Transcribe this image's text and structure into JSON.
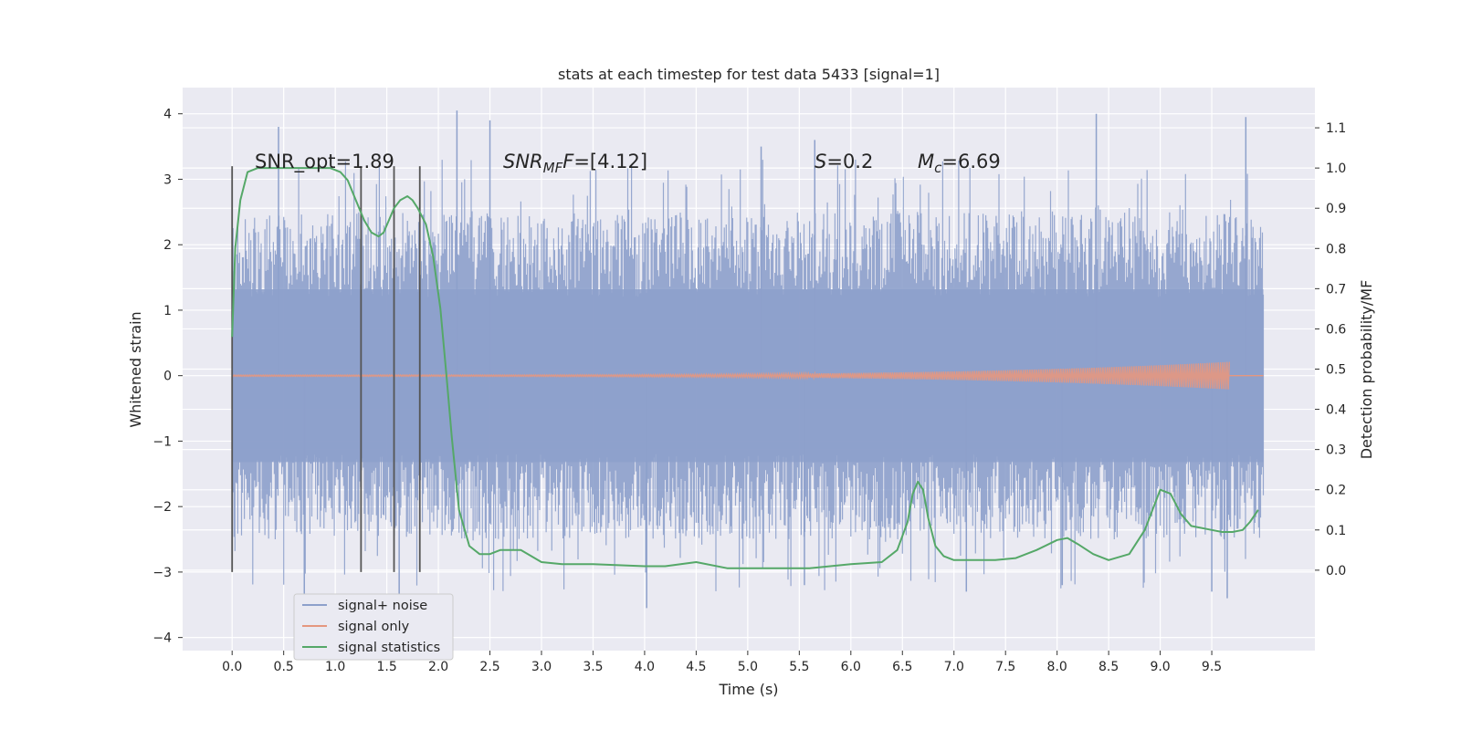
{
  "chart_data": {
    "type": "line",
    "title": "stats at each timestep for test data 5433 [signal=1]",
    "xlabel": "Time (s)",
    "ylabel_left": "Whitened strain",
    "ylabel_right": "Detection probability/MF",
    "xlim": [
      -0.48,
      10.5
    ],
    "ylim_left": [
      -4.2,
      4.4
    ],
    "ylim_right": [
      -0.2,
      1.2
    ],
    "x_ticks": [
      "0.0",
      "0.5",
      "1.0",
      "1.5",
      "2.0",
      "2.5",
      "3.0",
      "3.5",
      "4.0",
      "4.5",
      "5.0",
      "5.5",
      "6.0",
      "6.5",
      "7.0",
      "7.5",
      "8.0",
      "8.5",
      "9.0",
      "9.5"
    ],
    "x_tick_values": [
      0,
      0.5,
      1,
      1.5,
      2,
      2.5,
      3,
      3.5,
      4,
      4.5,
      5,
      5.5,
      6,
      6.5,
      7,
      7.5,
      8,
      8.5,
      9,
      9.5
    ],
    "y_left_ticks": [
      "4",
      "3",
      "2",
      "1",
      "0",
      "−1",
      "−2",
      "−3",
      "−4"
    ],
    "y_left_tick_values": [
      4,
      3,
      2,
      1,
      0,
      -1,
      -2,
      -3,
      -4
    ],
    "y_right_ticks": [
      "1.1",
      "1.0",
      "0.9",
      "0.8",
      "0.7",
      "0.6",
      "0.5",
      "0.4",
      "0.3",
      "0.2",
      "0.1",
      "0.0"
    ],
    "y_right_tick_values": [
      1.1,
      1.0,
      0.9,
      0.8,
      0.7,
      0.6,
      0.5,
      0.4,
      0.3,
      0.2,
      0.1,
      0.0
    ],
    "grid": true,
    "legend_position": "lower-left",
    "annotations": {
      "snr_opt": "SNR_opt=1.89",
      "snr_mf_sym": "SNR",
      "snr_mf_sub": "MF",
      "snr_mf_val": "=[4.12]",
      "s_sym": "S",
      "s_val": "=0.2",
      "mc_sym": "M",
      "mc_sub": "c",
      "mc_val": "=6.69"
    },
    "vertical_lines": {
      "x": [
        0.0,
        1.25,
        1.57,
        1.82
      ],
      "ymin": -3.0,
      "ymax": 3.2,
      "color": "#555555"
    },
    "series": [
      {
        "name": "signal+ noise",
        "color": "#8da0cb",
        "kind": "noise",
        "x_range": [
          0.0,
          10.0
        ],
        "envelope_lower": -2.2,
        "envelope_upper": 2.2,
        "peaks": [
          {
            "x": 0.45,
            "y": 3.8
          },
          {
            "x": 2.18,
            "y": 4.05
          },
          {
            "x": 2.5,
            "y": 3.9
          },
          {
            "x": 5.13,
            "y": 3.5
          },
          {
            "x": 5.65,
            "y": 3.6
          },
          {
            "x": 8.38,
            "y": 4.0
          },
          {
            "x": 9.83,
            "y": 3.95
          },
          {
            "x": 4.02,
            "y": -3.55
          },
          {
            "x": 5.55,
            "y": -3.2
          },
          {
            "x": 9.65,
            "y": -3.4
          },
          {
            "x": 9.5,
            "y": -3.3
          },
          {
            "x": 0.7,
            "y": -3.4
          },
          {
            "x": 1.62,
            "y": -3.5
          },
          {
            "x": 7.12,
            "y": -3.3
          },
          {
            "x": 8.05,
            "y": -3.2
          }
        ]
      },
      {
        "name": "signal only",
        "color": "#e5977f",
        "kind": "chirp",
        "x_range": [
          0.0,
          9.67
        ],
        "amplitude_end": 0.2
      },
      {
        "name": "signal statistics",
        "color": "#55a868",
        "axis": "right",
        "x": [
          0.0,
          0.03,
          0.08,
          0.15,
          0.25,
          0.4,
          0.6,
          0.8,
          0.95,
          1.05,
          1.12,
          1.2,
          1.28,
          1.35,
          1.42,
          1.47,
          1.52,
          1.57,
          1.63,
          1.7,
          1.75,
          1.8,
          1.88,
          1.95,
          2.02,
          2.08,
          2.13,
          2.2,
          2.3,
          2.4,
          2.5,
          2.6,
          2.8,
          3.0,
          3.2,
          3.5,
          4.0,
          4.2,
          4.5,
          4.8,
          5.2,
          5.6,
          6.0,
          6.3,
          6.45,
          6.55,
          6.6,
          6.65,
          6.7,
          6.75,
          6.82,
          6.9,
          7.0,
          7.2,
          7.4,
          7.6,
          7.8,
          8.0,
          8.1,
          8.2,
          8.35,
          8.5,
          8.7,
          8.85,
          9.0,
          9.1,
          9.2,
          9.3,
          9.5,
          9.6,
          9.7,
          9.8,
          9.87,
          9.95
        ],
        "y": [
          0.58,
          0.8,
          0.92,
          0.99,
          1.0,
          1.0,
          1.0,
          1.0,
          1.0,
          0.99,
          0.97,
          0.92,
          0.87,
          0.84,
          0.83,
          0.84,
          0.87,
          0.9,
          0.92,
          0.93,
          0.92,
          0.9,
          0.86,
          0.78,
          0.65,
          0.48,
          0.33,
          0.15,
          0.06,
          0.04,
          0.04,
          0.05,
          0.05,
          0.02,
          0.015,
          0.015,
          0.01,
          0.01,
          0.02,
          0.005,
          0.005,
          0.005,
          0.015,
          0.02,
          0.05,
          0.12,
          0.19,
          0.22,
          0.2,
          0.13,
          0.06,
          0.035,
          0.025,
          0.025,
          0.025,
          0.03,
          0.05,
          0.075,
          0.08,
          0.065,
          0.04,
          0.025,
          0.04,
          0.1,
          0.2,
          0.19,
          0.14,
          0.11,
          0.1,
          0.095,
          0.095,
          0.1,
          0.12,
          0.15
        ]
      }
    ]
  }
}
